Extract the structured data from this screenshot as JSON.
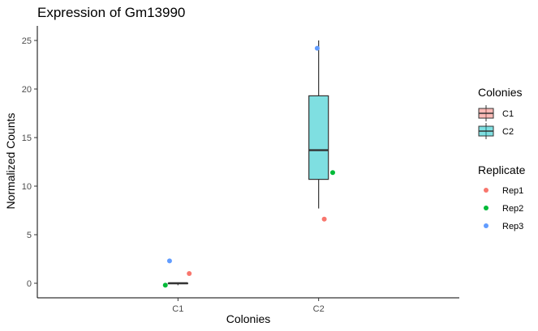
{
  "chart_data": {
    "type": "boxplot",
    "title": "Expression of Gm13990",
    "xlabel": "Colonies",
    "ylabel": "Normalized Counts",
    "categories": [
      "C1",
      "C2"
    ],
    "ylim": [
      -1.5,
      26.5
    ],
    "yticks": [
      0,
      5,
      10,
      15,
      20,
      25
    ],
    "grid": false,
    "boxes": [
      {
        "category": "C1",
        "min": -0.2,
        "q1": 0.0,
        "median": 0.0,
        "q3": 0.0,
        "max": 0.0,
        "color": "#F8766D"
      },
      {
        "category": "C2",
        "min": 7.7,
        "q1": 10.7,
        "median": 13.7,
        "q3": 19.3,
        "max": 25.0,
        "color": "#00BFC4"
      }
    ],
    "points": [
      {
        "category": "C1",
        "replicate": "Rep1",
        "y": 1.0,
        "jitter": 0.08
      },
      {
        "category": "C1",
        "replicate": "Rep2",
        "y": -0.2,
        "jitter": -0.09
      },
      {
        "category": "C1",
        "replicate": "Rep3",
        "y": 2.3,
        "jitter": -0.06
      },
      {
        "category": "C2",
        "replicate": "Rep1",
        "y": 6.6,
        "jitter": 0.04
      },
      {
        "category": "C2",
        "replicate": "Rep2",
        "y": 11.4,
        "jitter": 0.1
      },
      {
        "category": "C2",
        "replicate": "Rep3",
        "y": 24.2,
        "jitter": -0.01
      }
    ],
    "legend": {
      "placement": "right",
      "fill": {
        "title": "Colonies",
        "entries": [
          {
            "label": "C1",
            "color": "#F8766D"
          },
          {
            "label": "C2",
            "color": "#00BFC4"
          }
        ]
      },
      "color": {
        "title": "Replicate",
        "entries": [
          {
            "label": "Rep1",
            "color": "#F8766D"
          },
          {
            "label": "Rep2",
            "color": "#00BA38"
          },
          {
            "label": "Rep3",
            "color": "#619CFF"
          }
        ]
      }
    }
  }
}
